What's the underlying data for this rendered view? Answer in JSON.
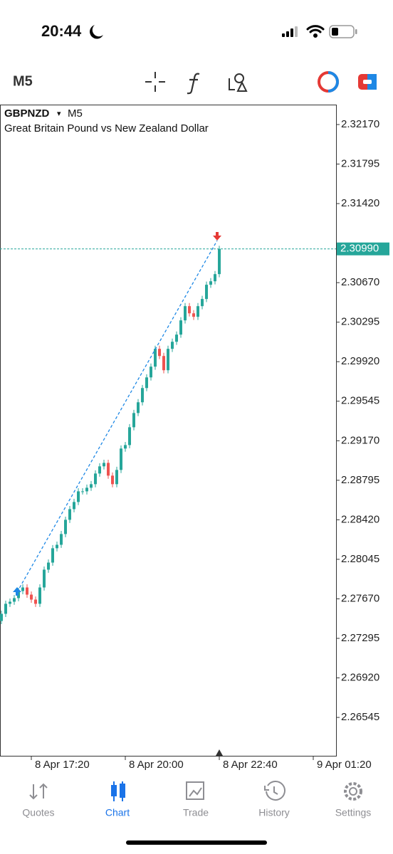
{
  "status_bar": {
    "time": "20:44"
  },
  "toolbar": {
    "timeframe": "M5"
  },
  "chart_data": {
    "type": "candlestick",
    "symbol": "GBPNZD",
    "dropdown": "▾",
    "timeframe": "M5",
    "subtitle": "Great Britain Pound vs New Zealand Dollar",
    "open": [
      2.2746,
      2.27528,
      2.27623,
      2.27643,
      2.27677,
      2.27744,
      2.27778,
      2.2771,
      2.27663,
      2.27623,
      2.27778,
      2.27947,
      2.28014,
      2.2815,
      2.28183,
      2.28285,
      2.2842,
      2.28521,
      2.28589,
      2.2869,
      2.2869,
      2.28724,
      2.28758,
      2.28859,
      2.28927,
      2.2896,
      2.28839,
      2.28758,
      2.28893,
      2.29096,
      2.29129,
      2.29298,
      2.29433,
      2.29535,
      2.2967,
      2.29771,
      2.29873,
      2.30042,
      2.29974,
      2.29839,
      2.30042,
      2.30109,
      2.30177,
      2.30312,
      2.30447,
      2.30379,
      2.30346,
      2.30447,
      2.30515,
      2.3065,
      2.30683,
      2.30751
    ],
    "high": [
      2.27558,
      2.27653,
      2.27673,
      2.27707,
      2.27774,
      2.27808,
      2.27808,
      2.2774,
      2.27693,
      2.27808,
      2.27977,
      2.28044,
      2.2818,
      2.28213,
      2.28315,
      2.2845,
      2.28551,
      2.28619,
      2.2872,
      2.2872,
      2.28754,
      2.28788,
      2.28889,
      2.28957,
      2.2899,
      2.2899,
      2.28869,
      2.28923,
      2.29126,
      2.29159,
      2.29328,
      2.29463,
      2.29565,
      2.297,
      2.29801,
      2.29903,
      2.30072,
      2.30072,
      2.30004,
      2.30072,
      2.30139,
      2.30207,
      2.30342,
      2.30477,
      2.30477,
      2.30409,
      2.30477,
      2.30545,
      2.3068,
      2.30713,
      2.30781,
      2.3102
    ],
    "low": [
      2.2743,
      2.27498,
      2.27593,
      2.27613,
      2.27647,
      2.27714,
      2.2768,
      2.27633,
      2.27593,
      2.27593,
      2.27748,
      2.27917,
      2.27984,
      2.2812,
      2.28153,
      2.28255,
      2.2839,
      2.28491,
      2.28559,
      2.2866,
      2.2866,
      2.28694,
      2.28728,
      2.28829,
      2.28897,
      2.28809,
      2.28728,
      2.28728,
      2.28863,
      2.29066,
      2.29099,
      2.29268,
      2.29403,
      2.29505,
      2.2964,
      2.29741,
      2.29843,
      2.29944,
      2.29809,
      2.29809,
      2.30012,
      2.30079,
      2.30147,
      2.30282,
      2.30349,
      2.30316,
      2.30316,
      2.30417,
      2.30485,
      2.3062,
      2.30653,
      2.30721
    ],
    "close": [
      2.27528,
      2.27623,
      2.27643,
      2.27677,
      2.27744,
      2.27778,
      2.2771,
      2.27663,
      2.27623,
      2.27778,
      2.27947,
      2.28014,
      2.2815,
      2.28183,
      2.28285,
      2.2842,
      2.28521,
      2.28589,
      2.2869,
      2.2869,
      2.28724,
      2.28758,
      2.28859,
      2.28927,
      2.2896,
      2.28839,
      2.28758,
      2.28893,
      2.29096,
      2.29129,
      2.29298,
      2.29433,
      2.29535,
      2.2967,
      2.29771,
      2.29873,
      2.30042,
      2.29974,
      2.29839,
      2.30042,
      2.30109,
      2.30177,
      2.30312,
      2.30447,
      2.30379,
      2.30346,
      2.30447,
      2.30515,
      2.3065,
      2.30683,
      2.30751,
      2.3099
    ],
    "up_color": "#26a69a",
    "down_color": "#ef5350",
    "ylim": [
      2.26181,
      2.32359
    ],
    "yticks": [
      {
        "value": 2.3217,
        "label": "2.32170"
      },
      {
        "value": 2.31795,
        "label": "2.31795"
      },
      {
        "value": 2.3142,
        "label": "2.31420"
      },
      {
        "value": 2.3067,
        "label": "2.30670"
      },
      {
        "value": 2.30295,
        "label": "2.30295"
      },
      {
        "value": 2.2992,
        "label": "2.29920"
      },
      {
        "value": 2.29545,
        "label": "2.29545"
      },
      {
        "value": 2.2917,
        "label": "2.29170"
      },
      {
        "value": 2.28795,
        "label": "2.28795"
      },
      {
        "value": 2.2842,
        "label": "2.28420"
      },
      {
        "value": 2.28045,
        "label": "2.28045"
      },
      {
        "value": 2.2767,
        "label": "2.27670"
      },
      {
        "value": 2.27295,
        "label": "2.27295"
      },
      {
        "value": 2.2692,
        "label": "2.26920"
      },
      {
        "value": 2.26545,
        "label": "2.26545"
      }
    ],
    "xticks": [
      "8 Apr 17:20",
      "8 Apr 20:00",
      "8 Apr 22:40",
      "9 Apr 01:20"
    ],
    "current_price": {
      "value": 2.3099,
      "label": "2.30990"
    }
  },
  "nav": {
    "items": [
      "Quotes",
      "Chart",
      "Trade",
      "History",
      "Settings"
    ],
    "active": 1
  }
}
